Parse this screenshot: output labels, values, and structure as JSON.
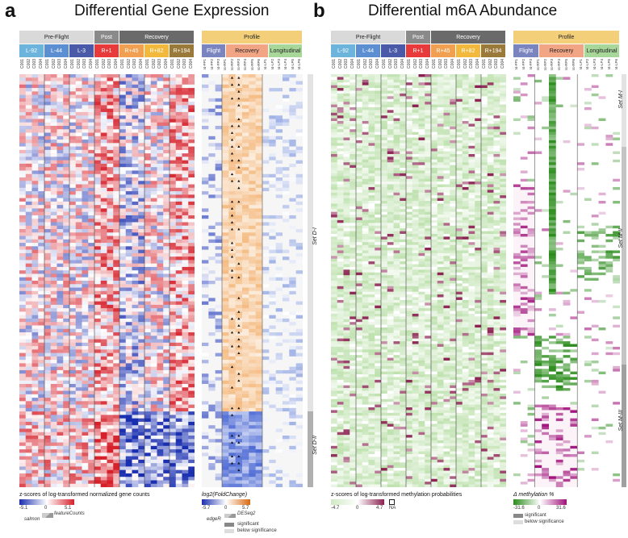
{
  "panel_a": {
    "letter": "a",
    "title": "Differential Gene Expression",
    "groups": [
      "Pre-Flight",
      "Post",
      "Recovery"
    ],
    "timepoints": [
      "L-92",
      "L-44",
      "L-3",
      "R+1",
      "R+45",
      "R+82",
      "R+194"
    ],
    "samples": [
      "C001",
      "C002",
      "C003",
      "C004"
    ],
    "profile_header": "Profile",
    "profile_groups": [
      "Flight",
      "Recovery",
      "Longitudinal"
    ],
    "flight_cols": [
      "I4-FP1",
      "I4-FP2",
      "I4-FP3"
    ],
    "recovery_cols": [
      "I4-RP1",
      "I4-RP2",
      "I4-RP3",
      "I4-RP4",
      "I4-RP5",
      "I4-RP6"
    ],
    "longitudinal_cols": [
      "I4-LP1",
      "I4-LP2",
      "I4-LP3",
      "I4-LP4",
      "I4-LP5",
      "I4-LP6"
    ],
    "sets": [
      "Set D-I",
      "Set D-II"
    ],
    "legend1_title": "z-scores of log-transformed normalized gene counts",
    "legend1_ticks": [
      "-5.1",
      "0",
      "5.1"
    ],
    "legend1_labels": [
      "salmon",
      "featureCounts"
    ],
    "legend2_title": "log2(FoldChange)",
    "legend2_ticks": [
      "-5.7",
      "0",
      "5.7"
    ],
    "legend2_labels": [
      "edgeR",
      "DESeq2"
    ],
    "sig_label": "significant",
    "below_label": "below significance"
  },
  "panel_b": {
    "letter": "b",
    "title": "Differential m6A Abundance",
    "groups": [
      "Pre-Flight",
      "Post",
      "Recovery"
    ],
    "timepoints": [
      "L-92",
      "L-44",
      "L-3",
      "R+1",
      "R+45",
      "R+82",
      "R+194"
    ],
    "samples": [
      "C001",
      "C002",
      "C003",
      "C004"
    ],
    "profile_header": "Profile",
    "profile_groups": [
      "Flight",
      "Recovery",
      "Longitudinal"
    ],
    "flight_cols": [
      "I4-FP1",
      "I4-FP2",
      "I4-FP3"
    ],
    "recovery_cols": [
      "I4-RP1",
      "I4-RP2",
      "I4-RP3",
      "I4-RP4",
      "I4-RP5",
      "I4-RP6"
    ],
    "longitudinal_cols": [
      "I4-LP1",
      "I4-LP2",
      "I4-LP3",
      "I4-LP4",
      "I4-LP5",
      "I4-LP6"
    ],
    "sets": [
      "Set M-I",
      "Set M-II",
      "Set M-III"
    ],
    "legend1_title": "z-scores of log-transformed methylation probabilities",
    "legend1_ticks": [
      "-4.7",
      "0",
      "4.7"
    ],
    "na_label": "NA",
    "legend2_title": "Δ methylation %",
    "legend2_ticks": [
      "-31.6",
      "0",
      "31.6"
    ],
    "sig_label": "significant",
    "below_label": "below significance"
  },
  "colors": {
    "L92": "#6cb4dc",
    "L44": "#5b8fd1",
    "L3": "#4a5aa8",
    "R1": "#e83a3a",
    "R45": "#f0a050",
    "R82": "#f2b93c",
    "R194": "#9a7a3a",
    "preflight": "#d9d9d9",
    "post": "#8a8a8a",
    "recovery": "#6a6a6a",
    "profile": "#f3cf7a",
    "flight": "#7a85c0",
    "recoveryProfile": "#f2a585",
    "longitudinal": "#a8d79a"
  }
}
